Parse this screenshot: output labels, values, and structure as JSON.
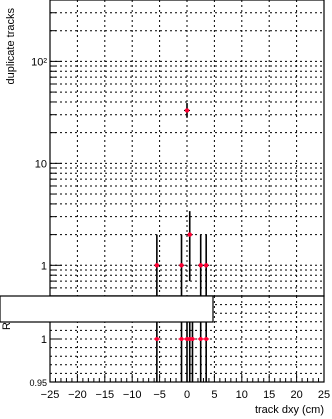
{
  "chart_data": [
    {
      "type": "scatter",
      "panel": "upper",
      "ylabel": "duplicate tracks",
      "yscale": "log",
      "ylim": [
        0.5,
        400
      ],
      "xlim": [
        -25,
        25
      ],
      "grid": true,
      "y_tick_labels": [
        "1",
        "10",
        "10²"
      ],
      "y_tick_values": [
        1,
        10,
        100
      ],
      "points": [
        {
          "x": -5.5,
          "y": 1,
          "err_up": 1.0,
          "err_down": 0.9
        },
        {
          "x": -1,
          "y": 1,
          "err_up": 1.0,
          "err_down": 0.9
        },
        {
          "x": 0,
          "y": 33,
          "err_up": 6,
          "err_down": 5
        },
        {
          "x": 0.5,
          "y": 2,
          "err_up": 1.4,
          "err_down": 1.3
        },
        {
          "x": 2.5,
          "y": 1,
          "err_up": 1.0,
          "err_down": 0.9
        },
        {
          "x": 3.5,
          "y": 1,
          "err_up": 1.0,
          "err_down": 0.9
        }
      ]
    },
    {
      "type": "scatter",
      "panel": "lower",
      "ylabel": "R",
      "xlabel": "track dxy (cm)",
      "xlim": [
        -25,
        25
      ],
      "ylim": [
        0.95,
        1.05
      ],
      "grid": true,
      "x_tick_labels": [
        "−25",
        "−20",
        "−15",
        "−10",
        "−5",
        "0",
        "5",
        "10",
        "15",
        "20",
        "25"
      ],
      "x_tick_values": [
        -25,
        -20,
        -15,
        -10,
        -5,
        0,
        5,
        10,
        15,
        20,
        25
      ],
      "y_tick_labels": [
        "1",
        "0.95"
      ],
      "y_tick_values": [
        1,
        0.95
      ],
      "points": [
        {
          "x": -5.5,
          "y": 1
        },
        {
          "x": -1,
          "y": 1
        },
        {
          "x": 0,
          "y": 1
        },
        {
          "x": 0.5,
          "y": 1
        },
        {
          "x": 1,
          "y": 1
        },
        {
          "x": 2.5,
          "y": 1
        },
        {
          "x": 3.5,
          "y": 1
        }
      ]
    }
  ],
  "colors": {
    "marker": "#ff0033",
    "errorbar": "#000000",
    "grid": "#000000"
  }
}
